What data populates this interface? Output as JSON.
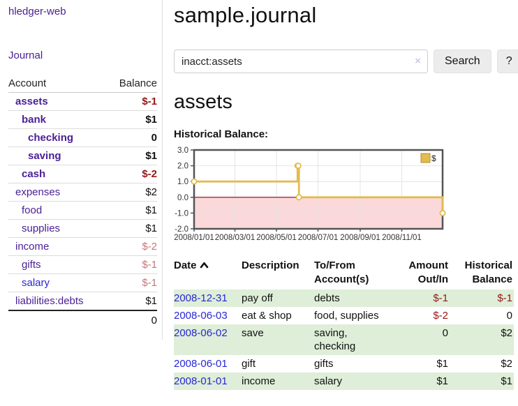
{
  "app": {
    "brand": "hledger-web",
    "nav_journal": "Journal"
  },
  "colors": {
    "purple_link": "#4a2196",
    "blue_link": "#2727d4",
    "negative_strong": "#971616",
    "negative_soft": "#c37878",
    "row_green": "#deeed8",
    "chart_line_gold": "#e3bb4f",
    "chart_negative_pink": "#fbd8da",
    "chart_zero_line": "#8b0000"
  },
  "sidebar": {
    "accounts_header": {
      "account": "Account",
      "balance": "Balance"
    },
    "accounts": [
      {
        "name": "assets",
        "indent": 1,
        "bold": true,
        "link_style": "purple",
        "balance": "$-1",
        "balance_style": "neg-strong"
      },
      {
        "name": "bank",
        "indent": 2,
        "bold": true,
        "link_style": "purple",
        "balance": "$1",
        "balance_style": "pos"
      },
      {
        "name": "checking",
        "indent": 3,
        "bold": true,
        "link_style": "purple",
        "balance": "0",
        "balance_style": "pos"
      },
      {
        "name": "saving",
        "indent": 3,
        "bold": true,
        "link_style": "purple",
        "balance": "$1",
        "balance_style": "pos"
      },
      {
        "name": "cash",
        "indent": 2,
        "bold": true,
        "link_style": "purple",
        "balance": "$-2",
        "balance_style": "neg-strong"
      },
      {
        "name": "expenses",
        "indent": 1,
        "bold": false,
        "link_style": "purple",
        "balance": "$2",
        "balance_style": "pos"
      },
      {
        "name": "food",
        "indent": 2,
        "bold": false,
        "link_style": "purple",
        "balance": "$1",
        "balance_style": "pos"
      },
      {
        "name": "supplies",
        "indent": 2,
        "bold": false,
        "link_style": "purple",
        "balance": "$1",
        "balance_style": "pos"
      },
      {
        "name": "income",
        "indent": 1,
        "bold": false,
        "link_style": "purple",
        "balance": "$-2",
        "balance_style": "neg-soft"
      },
      {
        "name": "gifts",
        "indent": 2,
        "bold": false,
        "link_style": "purple",
        "balance": "$-1",
        "balance_style": "neg-soft"
      },
      {
        "name": "salary",
        "indent": 2,
        "bold": false,
        "link_style": "blue",
        "balance": "$-1",
        "balance_style": "neg-soft"
      },
      {
        "name": "liabilities:debts",
        "indent": 1,
        "bold": false,
        "link_style": "purple",
        "balance": "$1",
        "balance_style": "pos"
      }
    ],
    "total": "0"
  },
  "header": {
    "title": "sample.journal"
  },
  "search": {
    "value": "inacct:assets",
    "clear_icon": "×",
    "button": "Search",
    "help_button": "?"
  },
  "main": {
    "account_title": "assets",
    "chart_label": "Historical Balance:"
  },
  "chart_data": {
    "type": "line",
    "step": "step-after",
    "title": "Historical Balance",
    "x_range": [
      0,
      365
    ],
    "y_range": [
      -2,
      3
    ],
    "y_ticks": [
      3.0,
      2.0,
      1.0,
      0.0,
      -1.0,
      -2.0
    ],
    "x_ticks": [
      {
        "pos": 0,
        "label": "2008/01/01"
      },
      {
        "pos": 60,
        "label": "2008/03/01"
      },
      {
        "pos": 121,
        "label": "2008/05/01"
      },
      {
        "pos": 182,
        "label": "2008/07/01"
      },
      {
        "pos": 244,
        "label": "2008/09/01"
      },
      {
        "pos": 305,
        "label": "2008/11/01"
      }
    ],
    "legend_position": "top-right",
    "grid": true,
    "series": [
      {
        "name": "$",
        "color": "#e3bb4f",
        "points": [
          {
            "date": "2008-01-01",
            "x": 0,
            "y": 1
          },
          {
            "date": "2008-06-01",
            "x": 152,
            "y": 2
          },
          {
            "date": "2008-06-02",
            "x": 153,
            "y": 2
          },
          {
            "date": "2008-06-03",
            "x": 154,
            "y": 0
          },
          {
            "date": "2008-12-31",
            "x": 365,
            "y": -1
          }
        ]
      }
    ]
  },
  "register_table": {
    "columns": [
      "Date",
      "Description",
      "To/From Account(s)",
      "Amount Out/In",
      "Historical Balance"
    ],
    "sort_icon": "chevron-up",
    "rows": [
      {
        "date": "2008-12-31",
        "description": "pay off",
        "accounts": "debts",
        "amount": "$-1",
        "balance": "$-1"
      },
      {
        "date": "2008-06-03",
        "description": "eat & shop",
        "accounts": "food, supplies",
        "amount": "$-2",
        "balance": "0"
      },
      {
        "date": "2008-06-02",
        "description": "save",
        "accounts": "saving, checking",
        "amount": "0",
        "balance": "$2"
      },
      {
        "date": "2008-06-01",
        "description": "gift",
        "accounts": "gifts",
        "amount": "$1",
        "balance": "$2"
      },
      {
        "date": "2008-01-01",
        "description": "income",
        "accounts": "salary",
        "amount": "$1",
        "balance": "$1"
      }
    ]
  }
}
